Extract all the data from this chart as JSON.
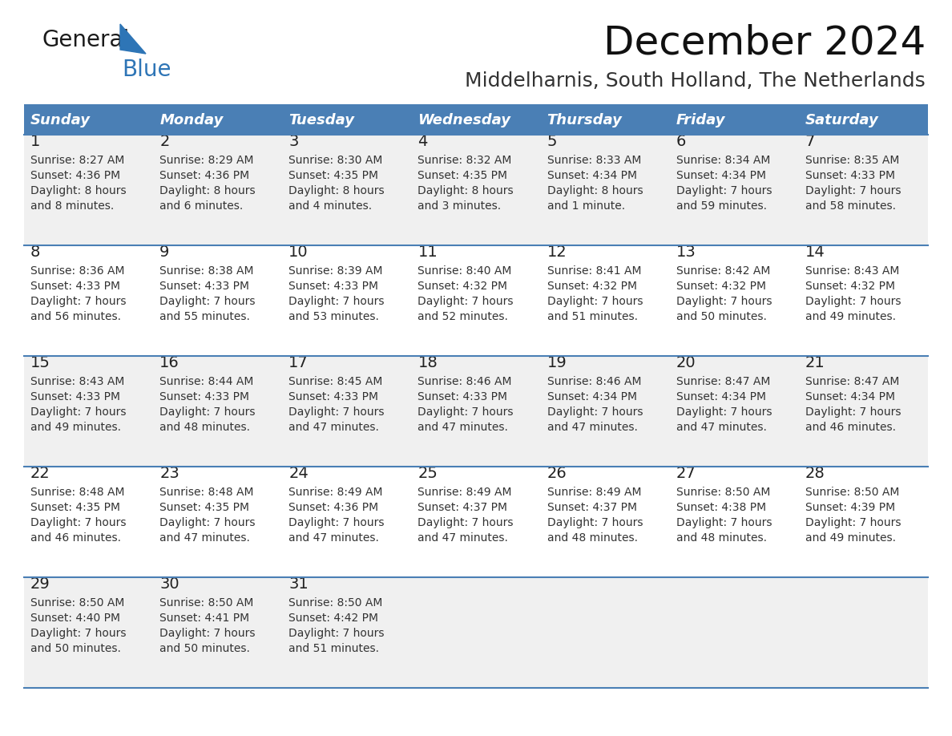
{
  "title": "December 2024",
  "subtitle": "Middelharnis, South Holland, The Netherlands",
  "header_bg": "#4A7FB5",
  "header_text_color": "#FFFFFF",
  "cell_bg_light": "#F0F0F0",
  "cell_bg_white": "#FFFFFF",
  "border_color": "#4A7FB5",
  "day_names": [
    "Sunday",
    "Monday",
    "Tuesday",
    "Wednesday",
    "Thursday",
    "Friday",
    "Saturday"
  ],
  "weeks": [
    [
      {
        "day": 1,
        "sunrise": "8:27 AM",
        "sunset": "4:36 PM",
        "daylight": "8 hours",
        "daylight2": "and 8 minutes."
      },
      {
        "day": 2,
        "sunrise": "8:29 AM",
        "sunset": "4:36 PM",
        "daylight": "8 hours",
        "daylight2": "and 6 minutes."
      },
      {
        "day": 3,
        "sunrise": "8:30 AM",
        "sunset": "4:35 PM",
        "daylight": "8 hours",
        "daylight2": "and 4 minutes."
      },
      {
        "day": 4,
        "sunrise": "8:32 AM",
        "sunset": "4:35 PM",
        "daylight": "8 hours",
        "daylight2": "and 3 minutes."
      },
      {
        "day": 5,
        "sunrise": "8:33 AM",
        "sunset": "4:34 PM",
        "daylight": "8 hours",
        "daylight2": "and 1 minute."
      },
      {
        "day": 6,
        "sunrise": "8:34 AM",
        "sunset": "4:34 PM",
        "daylight": "7 hours",
        "daylight2": "and 59 minutes."
      },
      {
        "day": 7,
        "sunrise": "8:35 AM",
        "sunset": "4:33 PM",
        "daylight": "7 hours",
        "daylight2": "and 58 minutes."
      }
    ],
    [
      {
        "day": 8,
        "sunrise": "8:36 AM",
        "sunset": "4:33 PM",
        "daylight": "7 hours",
        "daylight2": "and 56 minutes."
      },
      {
        "day": 9,
        "sunrise": "8:38 AM",
        "sunset": "4:33 PM",
        "daylight": "7 hours",
        "daylight2": "and 55 minutes."
      },
      {
        "day": 10,
        "sunrise": "8:39 AM",
        "sunset": "4:33 PM",
        "daylight": "7 hours",
        "daylight2": "and 53 minutes."
      },
      {
        "day": 11,
        "sunrise": "8:40 AM",
        "sunset": "4:32 PM",
        "daylight": "7 hours",
        "daylight2": "and 52 minutes."
      },
      {
        "day": 12,
        "sunrise": "8:41 AM",
        "sunset": "4:32 PM",
        "daylight": "7 hours",
        "daylight2": "and 51 minutes."
      },
      {
        "day": 13,
        "sunrise": "8:42 AM",
        "sunset": "4:32 PM",
        "daylight": "7 hours",
        "daylight2": "and 50 minutes."
      },
      {
        "day": 14,
        "sunrise": "8:43 AM",
        "sunset": "4:32 PM",
        "daylight": "7 hours",
        "daylight2": "and 49 minutes."
      }
    ],
    [
      {
        "day": 15,
        "sunrise": "8:43 AM",
        "sunset": "4:33 PM",
        "daylight": "7 hours",
        "daylight2": "and 49 minutes."
      },
      {
        "day": 16,
        "sunrise": "8:44 AM",
        "sunset": "4:33 PM",
        "daylight": "7 hours",
        "daylight2": "and 48 minutes."
      },
      {
        "day": 17,
        "sunrise": "8:45 AM",
        "sunset": "4:33 PM",
        "daylight": "7 hours",
        "daylight2": "and 47 minutes."
      },
      {
        "day": 18,
        "sunrise": "8:46 AM",
        "sunset": "4:33 PM",
        "daylight": "7 hours",
        "daylight2": "and 47 minutes."
      },
      {
        "day": 19,
        "sunrise": "8:46 AM",
        "sunset": "4:34 PM",
        "daylight": "7 hours",
        "daylight2": "and 47 minutes."
      },
      {
        "day": 20,
        "sunrise": "8:47 AM",
        "sunset": "4:34 PM",
        "daylight": "7 hours",
        "daylight2": "and 47 minutes."
      },
      {
        "day": 21,
        "sunrise": "8:47 AM",
        "sunset": "4:34 PM",
        "daylight": "7 hours",
        "daylight2": "and 46 minutes."
      }
    ],
    [
      {
        "day": 22,
        "sunrise": "8:48 AM",
        "sunset": "4:35 PM",
        "daylight": "7 hours",
        "daylight2": "and 46 minutes."
      },
      {
        "day": 23,
        "sunrise": "8:48 AM",
        "sunset": "4:35 PM",
        "daylight": "7 hours",
        "daylight2": "and 47 minutes."
      },
      {
        "day": 24,
        "sunrise": "8:49 AM",
        "sunset": "4:36 PM",
        "daylight": "7 hours",
        "daylight2": "and 47 minutes."
      },
      {
        "day": 25,
        "sunrise": "8:49 AM",
        "sunset": "4:37 PM",
        "daylight": "7 hours",
        "daylight2": "and 47 minutes."
      },
      {
        "day": 26,
        "sunrise": "8:49 AM",
        "sunset": "4:37 PM",
        "daylight": "7 hours",
        "daylight2": "and 48 minutes."
      },
      {
        "day": 27,
        "sunrise": "8:50 AM",
        "sunset": "4:38 PM",
        "daylight": "7 hours",
        "daylight2": "and 48 minutes."
      },
      {
        "day": 28,
        "sunrise": "8:50 AM",
        "sunset": "4:39 PM",
        "daylight": "7 hours",
        "daylight2": "and 49 minutes."
      }
    ],
    [
      {
        "day": 29,
        "sunrise": "8:50 AM",
        "sunset": "4:40 PM",
        "daylight": "7 hours",
        "daylight2": "and 50 minutes."
      },
      {
        "day": 30,
        "sunrise": "8:50 AM",
        "sunset": "4:41 PM",
        "daylight": "7 hours",
        "daylight2": "and 50 minutes."
      },
      {
        "day": 31,
        "sunrise": "8:50 AM",
        "sunset": "4:42 PM",
        "daylight": "7 hours",
        "daylight2": "and 51 minutes."
      },
      null,
      null,
      null,
      null
    ]
  ],
  "logo_triangle_color": "#2E75B6",
  "fig_bg": "#FFFFFF",
  "title_fontsize": 36,
  "subtitle_fontsize": 18,
  "header_fontsize": 13,
  "day_num_fontsize": 14,
  "cell_fontsize": 10
}
